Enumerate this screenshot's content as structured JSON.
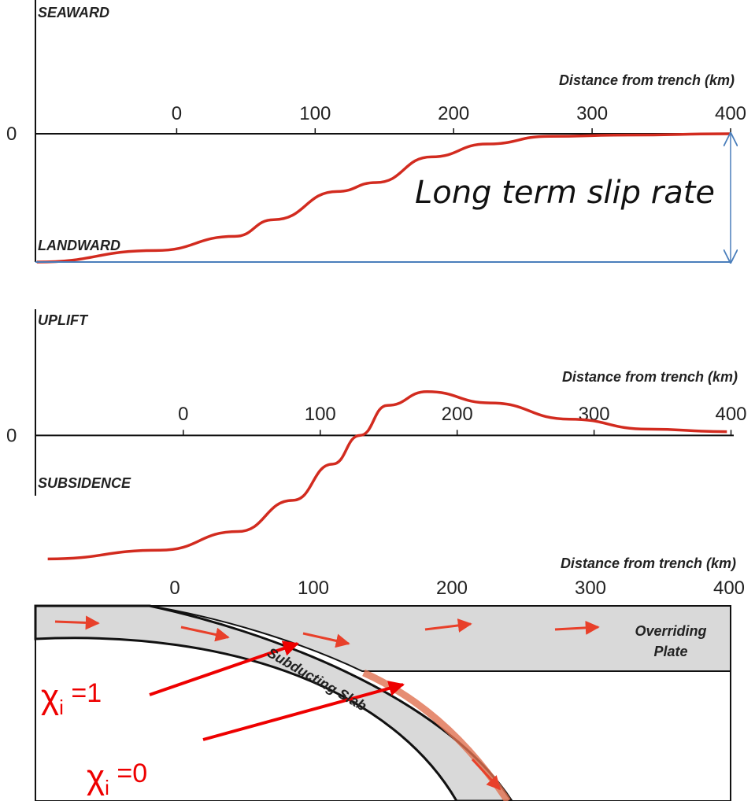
{
  "chart_data": [
    {
      "type": "line",
      "xlabel": "Distance from trench (km)",
      "y_top_label": "SEAWARD",
      "y_bottom_label": "LANDWARD",
      "annotation": "Long term slip rate",
      "xlim": [
        -102,
        400
      ],
      "xticks": [
        0,
        100,
        200,
        300,
        400
      ],
      "ylim": [
        -1,
        1
      ],
      "yticks": [
        0
      ],
      "series": [
        {
          "color": "#d22b1f",
          "x": [
            -101,
            -15,
            42,
            70,
            116,
            144,
            184,
            224,
            269,
            326,
            400
          ],
          "values": [
            -1,
            -0.91,
            -0.8,
            -0.67,
            -0.45,
            -0.38,
            -0.18,
            -0.08,
            -0.02,
            -0.01,
            0
          ]
        }
      ]
    },
    {
      "type": "line",
      "xlabel": "Distance from trench (km)",
      "y_top_label": "UPLIFT",
      "y_bottom_label": "SUBSIDENCE",
      "xlim": [
        -108,
        402
      ],
      "xticks": [
        0,
        100,
        200,
        300,
        400
      ],
      "ylim": [
        -1,
        0.96
      ],
      "yticks": [
        0
      ],
      "series": [
        {
          "color": "#d22b1f",
          "x": [
            -99,
            -17,
            40,
            80,
            109,
            129,
            149,
            178,
            224,
            282,
            339,
            397
          ],
          "values": [
            -0.99,
            -0.92,
            -0.77,
            -0.52,
            -0.23,
            0,
            0.24,
            0.35,
            0.26,
            0.13,
            0.05,
            0.03
          ]
        }
      ]
    }
  ],
  "diagram": {
    "xlabel": "Distance from trench (km)",
    "ticks": [
      "0",
      "100",
      "200",
      "300",
      "400"
    ],
    "overriding_plate": "Overriding Plate",
    "subducting_slab": "Subducting Slab",
    "chi_labels": [
      {
        "symbol": "χ",
        "subscript": "i",
        "text": " =1"
      },
      {
        "symbol": "χ",
        "subscript": "i",
        "text": " =0"
      }
    ]
  }
}
